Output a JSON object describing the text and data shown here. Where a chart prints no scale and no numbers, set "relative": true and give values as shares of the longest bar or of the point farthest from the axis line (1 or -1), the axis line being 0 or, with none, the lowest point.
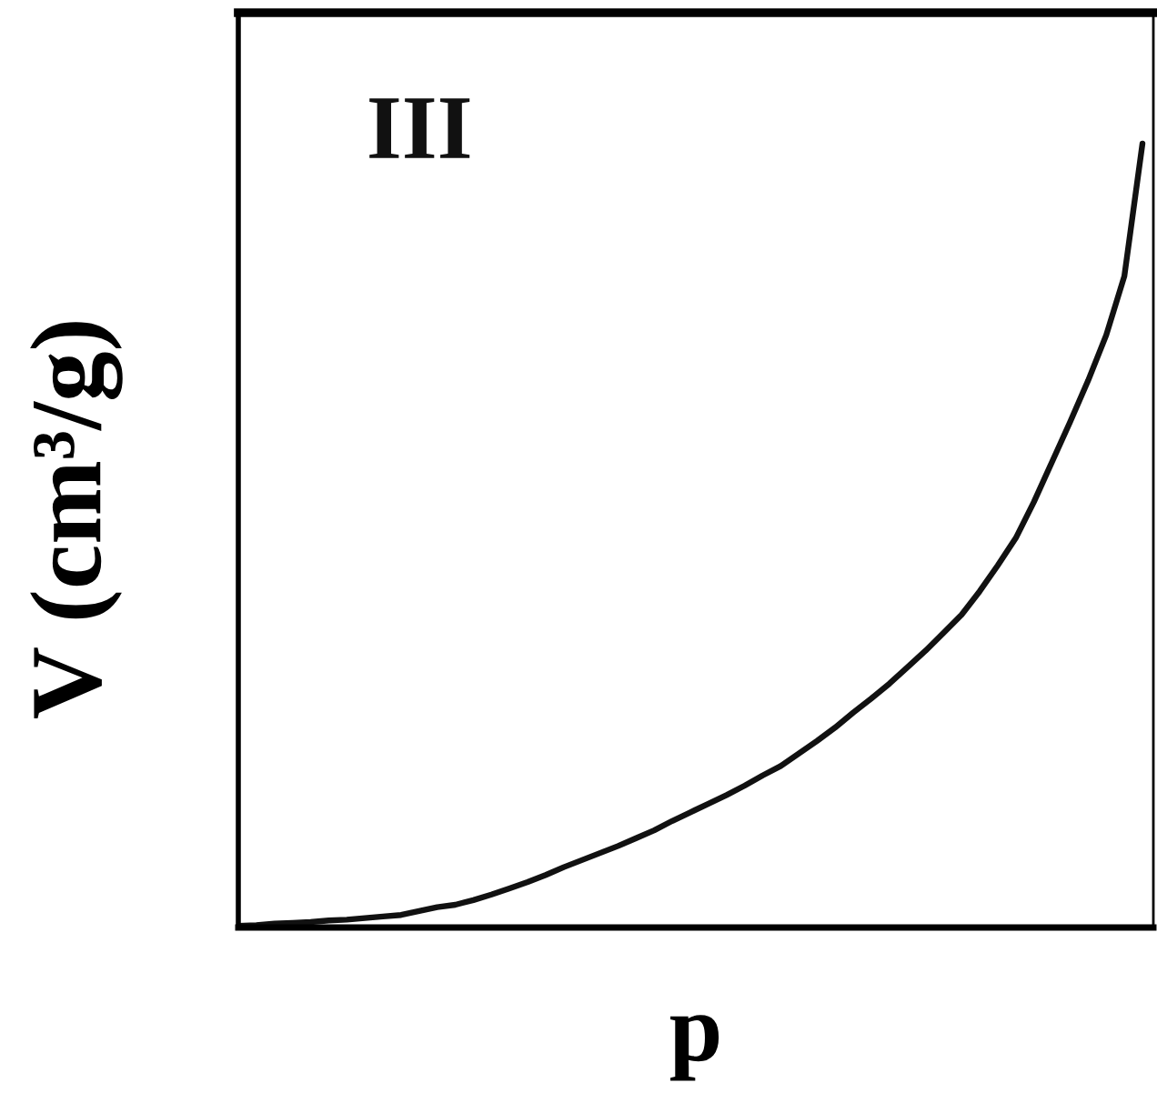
{
  "chart_data": {
    "type": "line",
    "relative": true,
    "xlabel": "p",
    "ylabel": "V (cm³/g)",
    "annotations": [
      "III"
    ],
    "marker": "none",
    "line_style": "solid",
    "categories": [
      null,
      null,
      null,
      null,
      null,
      null,
      null,
      null,
      null,
      null,
      null,
      null,
      null,
      null,
      null,
      null,
      null,
      null,
      null,
      null,
      null,
      null,
      null,
      null,
      null,
      null,
      null,
      null,
      null,
      null,
      null,
      null,
      null,
      null,
      null,
      null,
      null,
      null,
      null,
      null,
      null,
      null,
      null,
      null,
      null,
      null,
      null,
      null,
      null,
      null,
      null
    ],
    "series": [
      {
        "color": "#111111",
        "values": [
          0.002,
          0.003,
          0.005,
          0.006,
          0.007,
          0.009,
          0.01,
          0.012,
          0.014,
          0.016,
          0.021,
          0.026,
          0.029,
          0.035,
          0.042,
          0.05,
          0.058,
          0.067,
          0.077,
          0.086,
          0.095,
          0.104,
          0.114,
          0.124,
          0.136,
          0.147,
          0.158,
          0.169,
          0.181,
          0.194,
          0.206,
          0.222,
          0.238,
          0.255,
          0.274,
          0.292,
          0.311,
          0.332,
          0.353,
          0.376,
          0.399,
          0.429,
          0.462,
          0.497,
          0.543,
          0.594,
          0.645,
          0.698,
          0.756,
          0.831,
          1.0
        ]
      }
    ]
  }
}
